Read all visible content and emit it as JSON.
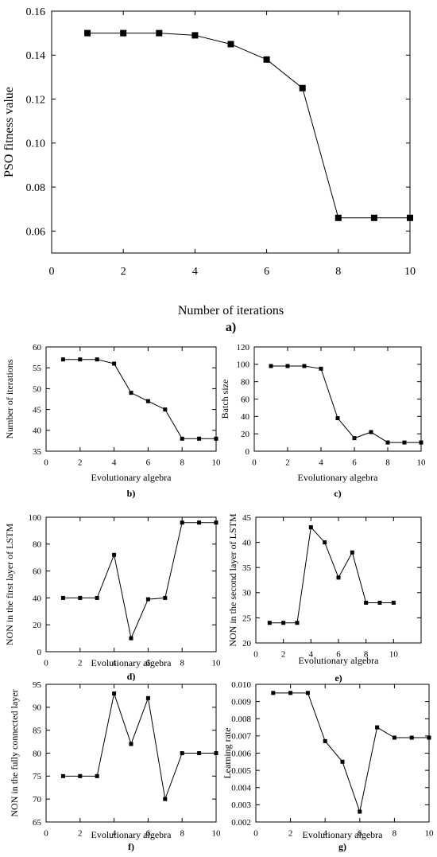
{
  "chart_data": [
    {
      "id": "a",
      "type": "line",
      "panel_label": "a)",
      "xlabel": "Number of iterations",
      "ylabel": "PSO fitness value",
      "xlim": [
        0,
        10
      ],
      "ylim": [
        0.05,
        0.16
      ],
      "xticks": [
        "0",
        "2",
        "4",
        "6",
        "8",
        "10"
      ],
      "yticks": [
        "0.06",
        "0.08",
        "0.10",
        "0.12",
        "0.14",
        "0.16"
      ],
      "x": [
        1,
        2,
        3,
        4,
        5,
        6,
        7,
        8,
        9,
        10
      ],
      "values": [
        0.15,
        0.15,
        0.15,
        0.149,
        0.145,
        0.138,
        0.125,
        0.066,
        0.066,
        0.066
      ]
    },
    {
      "id": "b",
      "type": "line",
      "panel_label": "b)",
      "xlabel": "Evolutionary algebra",
      "ylabel": "Number of iterations",
      "xlim": [
        0,
        10
      ],
      "ylim": [
        35,
        60
      ],
      "xticks": [
        "0",
        "2",
        "4",
        "6",
        "8",
        "10"
      ],
      "yticks": [
        "35",
        "40",
        "45",
        "50",
        "55",
        "60"
      ],
      "x": [
        1,
        2,
        3,
        4,
        5,
        6,
        7,
        8,
        9,
        10
      ],
      "values": [
        57,
        57,
        57,
        56,
        49,
        47,
        45,
        38,
        38,
        38
      ]
    },
    {
      "id": "c",
      "type": "line",
      "panel_label": "c)",
      "xlabel": "Evolutionary algebra",
      "ylabel": "Batch size",
      "xlim": [
        0,
        10
      ],
      "ylim": [
        0,
        120
      ],
      "xticks": [
        "0",
        "2",
        "4",
        "6",
        "8",
        "10"
      ],
      "yticks": [
        "0",
        "20",
        "40",
        "60",
        "80",
        "100",
        "120"
      ],
      "x": [
        1,
        2,
        3,
        4,
        5,
        6,
        7,
        8,
        9,
        10
      ],
      "values": [
        98,
        98,
        98,
        95,
        38,
        15,
        22,
        10,
        10,
        10
      ]
    },
    {
      "id": "d",
      "type": "line",
      "panel_label": "d)",
      "xlabel": "Evolutionary algebra",
      "ylabel": "NON in the first layer of LSTM",
      "xlim": [
        0,
        10
      ],
      "ylim": [
        0,
        100
      ],
      "xticks": [
        "0",
        "2",
        "4",
        "6",
        "8",
        "10"
      ],
      "yticks": [
        "0",
        "20",
        "40",
        "60",
        "80",
        "100"
      ],
      "x": [
        1,
        2,
        3,
        4,
        5,
        6,
        7,
        8,
        9,
        10
      ],
      "values": [
        40,
        40,
        40,
        72,
        10,
        39,
        40,
        96,
        96,
        96
      ]
    },
    {
      "id": "e",
      "type": "line",
      "panel_label": "e)",
      "xlabel": "Evolutionary algebra",
      "ylabel": "NON in the second layer of LSTM",
      "xlim": [
        0,
        12
      ],
      "ylim": [
        20,
        45
      ],
      "xticks": [
        "0",
        "2",
        "4",
        "6",
        "8",
        "10"
      ],
      "yticks": [
        "20",
        "25",
        "30",
        "35",
        "40",
        "45"
      ],
      "x": [
        1,
        2,
        3,
        4,
        5,
        6,
        7,
        8,
        9,
        10
      ],
      "values": [
        24,
        24,
        24,
        43,
        40,
        33,
        38,
        28,
        28,
        28
      ]
    },
    {
      "id": "f",
      "type": "line",
      "panel_label": "f)",
      "xlabel": "Evolutionary algebra",
      "ylabel": "NON in the fully connected layer",
      "xlim": [
        0,
        10
      ],
      "ylim": [
        65,
        95
      ],
      "xticks": [
        "0",
        "2",
        "4",
        "6",
        "8",
        "10"
      ],
      "yticks": [
        "65",
        "70",
        "75",
        "80",
        "85",
        "90",
        "95"
      ],
      "x": [
        1,
        2,
        3,
        4,
        5,
        6,
        7,
        8,
        9,
        10
      ],
      "values": [
        75,
        75,
        75,
        93,
        82,
        92,
        70,
        80,
        80,
        80
      ]
    },
    {
      "id": "g",
      "type": "line",
      "panel_label": "g)",
      "xlabel": "Evolutionary algebra",
      "ylabel": "Learning rate",
      "xlim": [
        0,
        10
      ],
      "ylim": [
        0.002,
        0.01
      ],
      "xticks": [
        "0",
        "2",
        "4",
        "6",
        "8",
        "10"
      ],
      "yticks": [
        "0.002",
        "0.003",
        "0.004",
        "0.005",
        "0.006",
        "0.007",
        "0.008",
        "0.009",
        "0.010"
      ],
      "x": [
        1,
        2,
        3,
        4,
        5,
        6,
        7,
        8,
        9,
        10
      ],
      "values": [
        0.0095,
        0.0095,
        0.0095,
        0.0067,
        0.0055,
        0.0026,
        0.0075,
        0.0069,
        0.0069,
        0.0069
      ]
    }
  ]
}
